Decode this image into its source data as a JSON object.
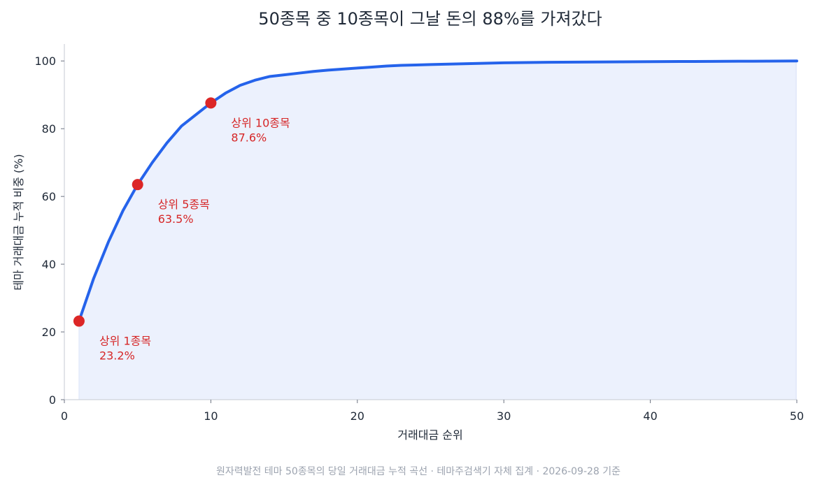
{
  "chart_data": {
    "type": "area",
    "title": "50종목 중 10종목이 그날 돈의 88%를 가져갔다",
    "xlabel": "거래대금 순위",
    "ylabel": "테마 거래대금 누적 비중 (%)",
    "xlim": [
      0,
      50
    ],
    "ylim": [
      0,
      105
    ],
    "x_ticks": [
      0,
      10,
      20,
      30,
      40,
      50
    ],
    "y_ticks": [
      0,
      20,
      40,
      60,
      80,
      100
    ],
    "grid": false,
    "line_color": "#2563eb",
    "fill_color": "#ecf1fd",
    "highlight_color": "#dc2626",
    "x": [
      1,
      2,
      3,
      4,
      5,
      6,
      7,
      8,
      9,
      10,
      11,
      12,
      13,
      14,
      15,
      16,
      17,
      18,
      19,
      20,
      21,
      22,
      23,
      24,
      25,
      26,
      27,
      28,
      29,
      30,
      31,
      32,
      33,
      34,
      35,
      36,
      37,
      38,
      39,
      40,
      41,
      42,
      43,
      44,
      45,
      46,
      47,
      48,
      49,
      50
    ],
    "y": [
      23.2,
      35.8,
      46.5,
      55.8,
      63.5,
      70.0,
      75.8,
      80.8,
      84.2,
      87.6,
      90.5,
      92.8,
      94.3,
      95.4,
      95.9,
      96.4,
      96.9,
      97.3,
      97.6,
      97.9,
      98.2,
      98.5,
      98.7,
      98.8,
      98.95,
      99.05,
      99.15,
      99.25,
      99.35,
      99.45,
      99.5,
      99.55,
      99.6,
      99.63,
      99.66,
      99.69,
      99.72,
      99.75,
      99.77,
      99.79,
      99.81,
      99.83,
      99.85,
      99.87,
      99.89,
      99.91,
      99.93,
      99.95,
      99.97,
      100.0
    ],
    "annotations": [
      {
        "x": 1,
        "y": 23.2,
        "label": "상위 1종목",
        "value": "23.2%"
      },
      {
        "x": 5,
        "y": 63.5,
        "label": "상위 5종목",
        "value": "63.5%"
      },
      {
        "x": 10,
        "y": 87.6,
        "label": "상위 10종목",
        "value": "87.6%"
      }
    ]
  },
  "footer": "원자력발전 테마 50종목의 당일 거래대금 누적 곡선 · 테마주검색기 자체 집계 · 2026-09-28 기준"
}
